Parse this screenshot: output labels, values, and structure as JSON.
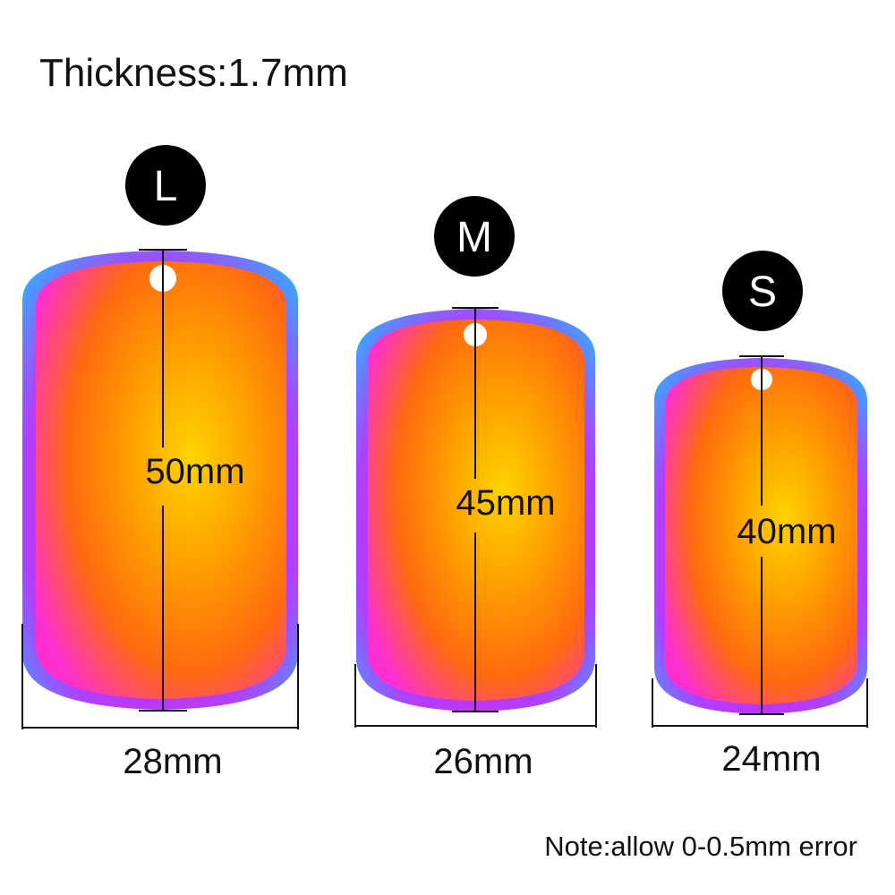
{
  "title": "Thickness:1.7mm",
  "note": "Note:allow 0-0.5mm error",
  "tags": [
    {
      "size": "L",
      "length": "50mm",
      "width": "28mm"
    },
    {
      "size": "M",
      "length": "45mm",
      "width": "26mm"
    },
    {
      "size": "S",
      "length": "40mm",
      "width": "24mm"
    }
  ],
  "colors": {
    "badge": "#000000",
    "dimension_line": "#111111",
    "tag_center": "#ffd000",
    "tag_mid": "#ff8c00",
    "tag_edge": "#ff2fd0",
    "tag_rim": "#33bbff"
  }
}
